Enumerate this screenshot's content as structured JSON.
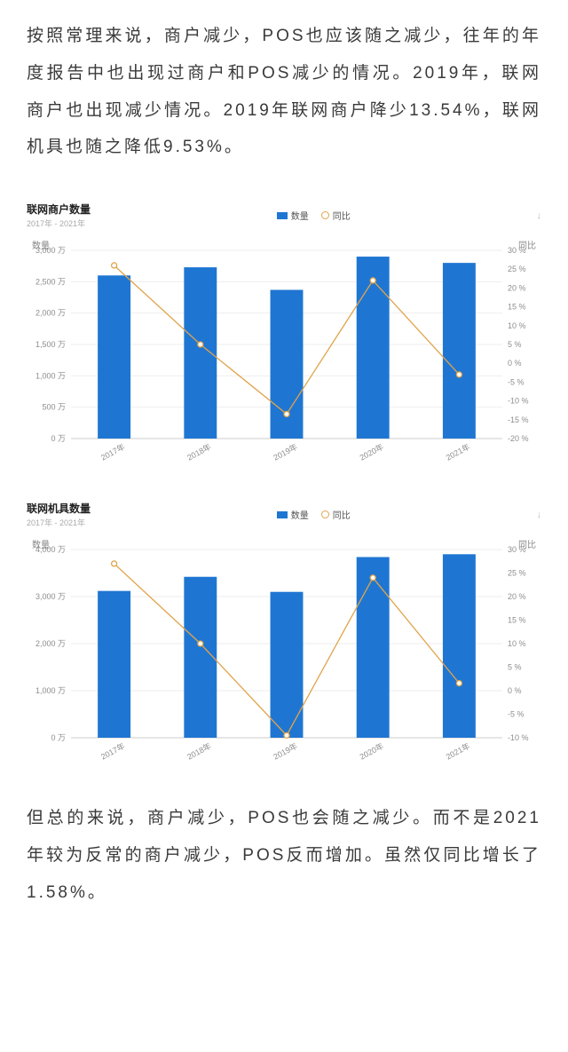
{
  "paragraph_top": "按照常理来说，商户减少，POS也应该随之减少，往年的年度报告中也出现过商户和POS减少的情况。2019年，联网商户也出现减少情况。2019年联网商户降少13.54%，联网机具也随之降低9.53%。",
  "paragraph_bottom": "但总的来说，商户减少，POS也会随之减少。而不是2021年较为反常的商户减少，POS反而增加。虽然仅同比增长了1.58%。",
  "legend": {
    "series1": "数量",
    "series2": "同比"
  },
  "export_icon": "↓",
  "chart1": {
    "title": "联网商户数量",
    "subtitle": "2017年 - 2021年",
    "ytitle_left": "数量",
    "ytitle_right": "同比",
    "type": "bar+line",
    "categories": [
      "2017年",
      "2018年",
      "2019年",
      "2020年",
      "2021年"
    ],
    "bar_values": [
      2600,
      2730,
      2370,
      2900,
      2800
    ],
    "line_values": [
      26,
      5,
      -13.5,
      22,
      -3
    ],
    "y_left": {
      "min": 0,
      "max": 3000,
      "step": 500,
      "unit": "万"
    },
    "y_right": {
      "min": -20,
      "max": 30,
      "step": 5,
      "unit": "%"
    },
    "bar_color": "#1f76d2",
    "line_color": "#e0a44b",
    "grid_color": "#eeeeee",
    "axis_color": "#cccccc",
    "background_color": "#ffffff",
    "bar_width_ratio": 0.38,
    "marker_radius": 3,
    "line_width": 1.3,
    "title_fontsize": 12,
    "label_fontsize": 9,
    "label_color": "#8d8d8d"
  },
  "chart2": {
    "title": "联网机具数量",
    "subtitle": "2017年 - 2021年",
    "ytitle_left": "数量",
    "ytitle_right": "同比",
    "type": "bar+line",
    "categories": [
      "2017年",
      "2018年",
      "2019年",
      "2020年",
      "2021年"
    ],
    "bar_values": [
      3120,
      3420,
      3100,
      3840,
      3900
    ],
    "line_values": [
      27,
      10,
      -9.5,
      24,
      1.58
    ],
    "y_left": {
      "min": 0,
      "max": 4000,
      "step": 1000,
      "unit": "万"
    },
    "y_right": {
      "min": -10,
      "max": 30,
      "step": 5,
      "unit": "%"
    },
    "bar_color": "#1f76d2",
    "line_color": "#e0a44b",
    "grid_color": "#eeeeee",
    "axis_color": "#cccccc",
    "background_color": "#ffffff",
    "bar_width_ratio": 0.38,
    "marker_radius": 3,
    "line_width": 1.3,
    "title_fontsize": 12,
    "label_fontsize": 9,
    "label_color": "#8d8d8d"
  }
}
